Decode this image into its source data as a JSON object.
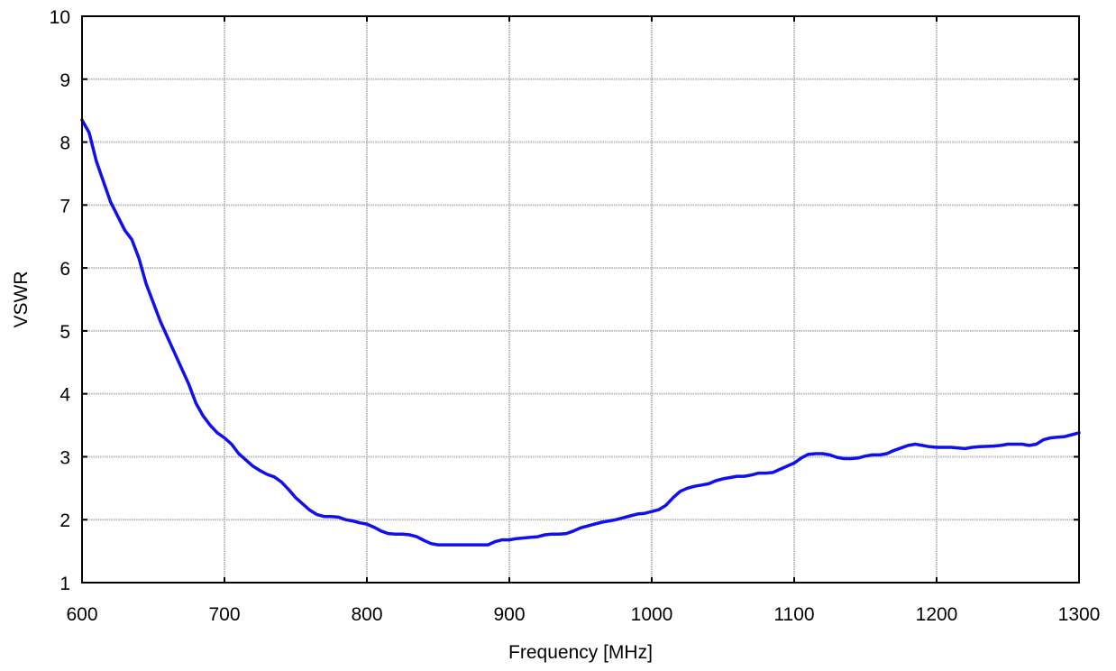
{
  "chart_data": {
    "type": "line",
    "xlabel": "Frequency [MHz]",
    "ylabel": "VSWR",
    "xlim": [
      600,
      1300
    ],
    "ylim": [
      1,
      10
    ],
    "xticks": [
      600,
      700,
      800,
      900,
      1000,
      1100,
      1200,
      1300
    ],
    "yticks": [
      1,
      2,
      3,
      4,
      5,
      6,
      7,
      8,
      9,
      10
    ],
    "grid": true,
    "legend": "none",
    "series": [
      {
        "color": "#1010ee",
        "x": [
          600,
          605,
          610,
          620,
          630,
          635,
          640,
          645,
          650,
          655,
          660,
          665,
          670,
          675,
          680,
          685,
          690,
          695,
          700,
          705,
          710,
          715,
          720,
          725,
          730,
          735,
          740,
          745,
          750,
          755,
          760,
          765,
          770,
          775,
          780,
          785,
          790,
          795,
          800,
          805,
          810,
          815,
          820,
          825,
          830,
          835,
          840,
          845,
          850,
          855,
          860,
          870,
          880,
          885,
          890,
          895,
          900,
          905,
          910,
          915,
          920,
          925,
          930,
          935,
          940,
          945,
          950,
          955,
          960,
          965,
          970,
          975,
          980,
          985,
          990,
          995,
          1000,
          1005,
          1010,
          1015,
          1020,
          1025,
          1030,
          1035,
          1040,
          1045,
          1050,
          1055,
          1060,
          1065,
          1070,
          1075,
          1080,
          1085,
          1090,
          1095,
          1100,
          1105,
          1110,
          1115,
          1120,
          1125,
          1130,
          1135,
          1140,
          1145,
          1150,
          1155,
          1160,
          1165,
          1170,
          1175,
          1180,
          1185,
          1190,
          1195,
          1200,
          1210,
          1220,
          1225,
          1230,
          1240,
          1245,
          1250,
          1255,
          1260,
          1265,
          1270,
          1275,
          1280,
          1285,
          1290,
          1295,
          1300
        ],
        "y": [
          8.35,
          8.15,
          7.7,
          7.05,
          6.6,
          6.45,
          6.15,
          5.75,
          5.45,
          5.15,
          4.9,
          4.65,
          4.4,
          4.15,
          3.85,
          3.65,
          3.5,
          3.38,
          3.3,
          3.2,
          3.05,
          2.95,
          2.85,
          2.78,
          2.72,
          2.68,
          2.6,
          2.48,
          2.35,
          2.25,
          2.15,
          2.08,
          2.05,
          2.05,
          2.04,
          2.0,
          1.98,
          1.95,
          1.93,
          1.88,
          1.82,
          1.78,
          1.77,
          1.77,
          1.76,
          1.73,
          1.67,
          1.62,
          1.6,
          1.6,
          1.6,
          1.6,
          1.6,
          1.6,
          1.65,
          1.68,
          1.68,
          1.7,
          1.71,
          1.72,
          1.73,
          1.76,
          1.77,
          1.77,
          1.78,
          1.82,
          1.87,
          1.9,
          1.93,
          1.96,
          1.98,
          2.0,
          2.03,
          2.06,
          2.09,
          2.1,
          2.13,
          2.16,
          2.23,
          2.35,
          2.45,
          2.5,
          2.53,
          2.55,
          2.57,
          2.62,
          2.65,
          2.67,
          2.69,
          2.69,
          2.71,
          2.74,
          2.74,
          2.75,
          2.8,
          2.85,
          2.9,
          2.98,
          3.04,
          3.05,
          3.05,
          3.03,
          2.99,
          2.97,
          2.97,
          2.98,
          3.01,
          3.03,
          3.03,
          3.05,
          3.1,
          3.14,
          3.18,
          3.2,
          3.18,
          3.16,
          3.15,
          3.15,
          3.13,
          3.15,
          3.16,
          3.17,
          3.18,
          3.2,
          3.2,
          3.2,
          3.18,
          3.2,
          3.27,
          3.3,
          3.31,
          3.32,
          3.35,
          3.38
        ]
      }
    ]
  }
}
